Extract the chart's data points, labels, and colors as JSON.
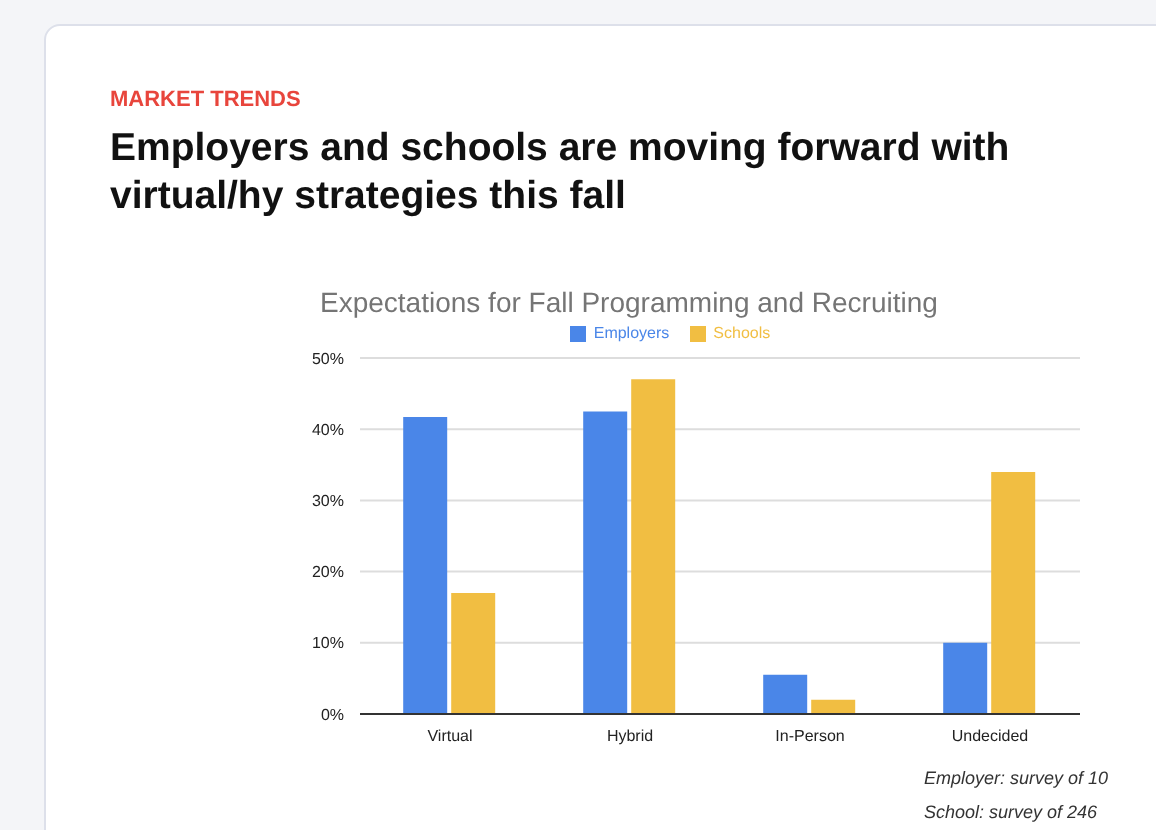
{
  "chart_data": {
    "type": "bar",
    "title": "Employers and schools are moving forward with virtual/hy strategies this fall",
    "subtitle": "Expectations for Fall Programming and Recruiting",
    "annotations": [
      "MARKET TRENDS",
      "Employer: survey of 10",
      "School: survey of 246"
    ],
    "categories": [
      "Virtual",
      "Hybrid",
      "In-Person",
      "Undecided"
    ],
    "series": [
      {
        "name": "Employers",
        "color": "#4a86e8",
        "values": [
          41.7,
          42.5,
          5.5,
          10
        ]
      },
      {
        "name": "Schools",
        "color": "#f1be42",
        "values": [
          17,
          47,
          2,
          34
        ]
      }
    ],
    "ylim": [
      0,
      50
    ],
    "yticks": [
      {
        "value": 0,
        "label": "0%"
      },
      {
        "value": 10,
        "label": "10%"
      },
      {
        "value": 20,
        "label": "20%"
      },
      {
        "value": 30,
        "label": "30%"
      },
      {
        "value": 40,
        "label": "40%"
      },
      {
        "value": 50,
        "label": "50%"
      }
    ],
    "grid": "y",
    "legend": "top"
  }
}
